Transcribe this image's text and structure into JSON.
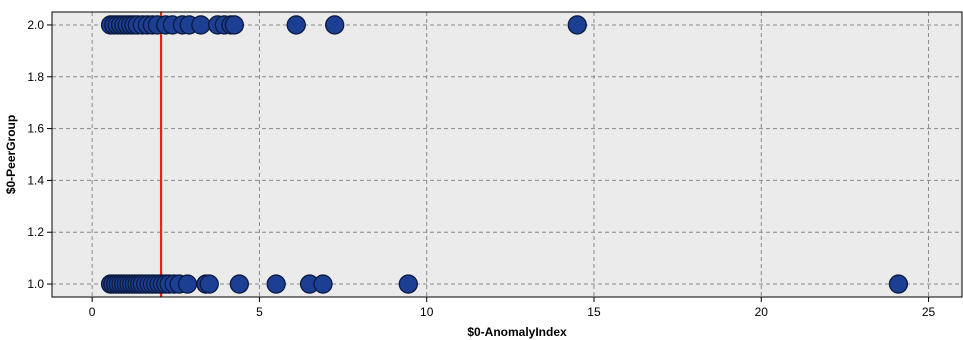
{
  "chart_data": {
    "type": "scatter",
    "xlabel": "$0-AnomalyIndex",
    "ylabel": "$0-PeerGroup",
    "xlim": [
      -1.2,
      26.0
    ],
    "ylim": [
      0.95,
      2.05
    ],
    "xticks": [
      0,
      5,
      10,
      15,
      20,
      25
    ],
    "yticks": [
      1.0,
      1.2,
      1.4,
      1.6,
      1.8,
      2.0
    ],
    "xtick_labels": [
      "0",
      "5",
      "10",
      "15",
      "20",
      "25"
    ],
    "ytick_labels": [
      "1.0",
      "1.2",
      "1.4",
      "1.6",
      "1.8",
      "2.0"
    ],
    "grid": true,
    "reference_line": {
      "x": 2.06,
      "color": "#e8221b"
    },
    "colors": {
      "plot_bg": "#ebebeb",
      "point_fill": "#1c3f94",
      "point_stroke": "#0a1a3f",
      "grid": "#8a8a8a"
    },
    "series": [
      {
        "points": [
          [
            0.55,
            2.0
          ],
          [
            0.65,
            2.0
          ],
          [
            0.75,
            2.0
          ],
          [
            0.85,
            2.0
          ],
          [
            0.95,
            2.0
          ],
          [
            1.05,
            2.0
          ],
          [
            1.15,
            2.0
          ],
          [
            1.25,
            2.0
          ],
          [
            1.35,
            2.0
          ],
          [
            1.5,
            2.0
          ],
          [
            1.65,
            2.0
          ],
          [
            1.8,
            2.0
          ],
          [
            1.95,
            2.0
          ],
          [
            2.2,
            2.0
          ],
          [
            2.4,
            2.0
          ],
          [
            2.7,
            2.0
          ],
          [
            2.9,
            2.0
          ],
          [
            3.25,
            2.0
          ],
          [
            3.75,
            2.0
          ],
          [
            3.95,
            2.0
          ],
          [
            4.15,
            2.0
          ],
          [
            4.25,
            2.0
          ],
          [
            6.1,
            2.0
          ],
          [
            7.25,
            2.0
          ],
          [
            14.5,
            2.0
          ],
          [
            0.55,
            1.0
          ],
          [
            0.62,
            1.0
          ],
          [
            0.7,
            1.0
          ],
          [
            0.78,
            1.0
          ],
          [
            0.86,
            1.0
          ],
          [
            0.94,
            1.0
          ],
          [
            1.02,
            1.0
          ],
          [
            1.1,
            1.0
          ],
          [
            1.18,
            1.0
          ],
          [
            1.26,
            1.0
          ],
          [
            1.34,
            1.0
          ],
          [
            1.42,
            1.0
          ],
          [
            1.5,
            1.0
          ],
          [
            1.6,
            1.0
          ],
          [
            1.7,
            1.0
          ],
          [
            1.8,
            1.0
          ],
          [
            1.9,
            1.0
          ],
          [
            2.0,
            1.0
          ],
          [
            2.1,
            1.0
          ],
          [
            2.2,
            1.0
          ],
          [
            2.3,
            1.0
          ],
          [
            2.45,
            1.0
          ],
          [
            2.6,
            1.0
          ],
          [
            2.85,
            1.0
          ],
          [
            3.4,
            1.0
          ],
          [
            3.5,
            1.0
          ],
          [
            4.4,
            1.0
          ],
          [
            5.5,
            1.0
          ],
          [
            6.5,
            1.0
          ],
          [
            6.9,
            1.0
          ],
          [
            9.45,
            1.0
          ],
          [
            24.1,
            1.0
          ]
        ]
      }
    ]
  }
}
